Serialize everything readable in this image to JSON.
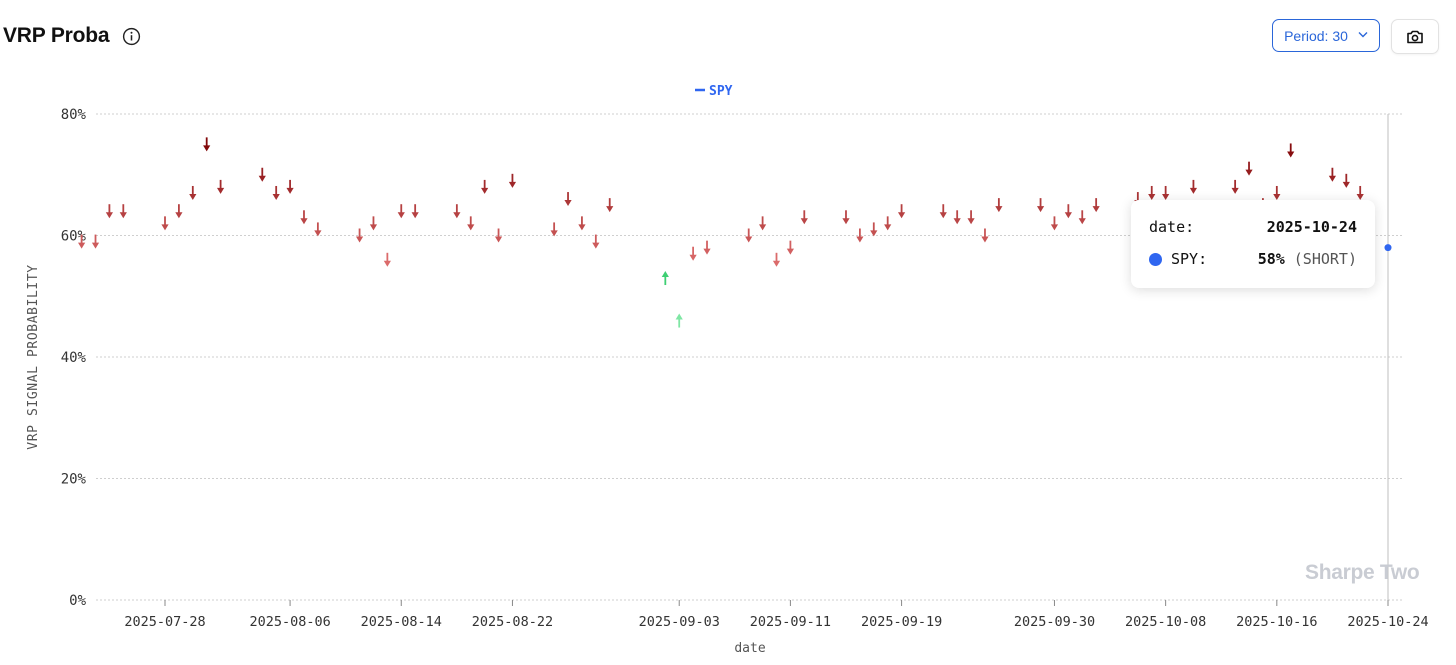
{
  "header": {
    "title": "VRP Proba",
    "info_icon": "info-circle-icon",
    "period_label": "Period: 30",
    "camera_icon": "camera-icon"
  },
  "tooltip": {
    "date_label": "date:",
    "date_value": "2025-10-24",
    "series_label": "SPY:",
    "value_text": "58%",
    "signal_text": "(SHORT)",
    "dot_color": "#2f66f0"
  },
  "watermark": "Sharpe Two",
  "chart_data": {
    "type": "scatter",
    "title": "",
    "xlabel": "date",
    "ylabel": "VRP SIGNAL PROBABILITY",
    "ylim": [
      0,
      80
    ],
    "y_ticks": [
      "0%",
      "20%",
      "40%",
      "60%",
      "80%"
    ],
    "x_ticks": [
      "2025-07-28",
      "2025-08-06",
      "2025-08-14",
      "2025-08-22",
      "2025-09-03",
      "2025-09-11",
      "2025-09-19",
      "2025-09-30",
      "2025-10-08",
      "2025-10-16",
      "2025-10-24"
    ],
    "grid": true,
    "legend": {
      "position": "top-center",
      "entries": [
        "SPY"
      ]
    },
    "series": [
      {
        "name": "SPY",
        "color": "#2f66f0",
        "short_color": "#b3202a",
        "long_color": "#3ecf73",
        "points": [
          {
            "x": "2025-07-22",
            "y": 59,
            "signal": "SHORT"
          },
          {
            "x": "2025-07-23",
            "y": 59,
            "signal": "SHORT"
          },
          {
            "x": "2025-07-24",
            "y": 64,
            "signal": "SHORT"
          },
          {
            "x": "2025-07-25",
            "y": 64,
            "signal": "SHORT"
          },
          {
            "x": "2025-07-28",
            "y": 62,
            "signal": "SHORT"
          },
          {
            "x": "2025-07-29",
            "y": 64,
            "signal": "SHORT"
          },
          {
            "x": "2025-07-30",
            "y": 67,
            "signal": "SHORT"
          },
          {
            "x": "2025-07-31",
            "y": 75,
            "signal": "SHORT"
          },
          {
            "x": "2025-08-01",
            "y": 68,
            "signal": "SHORT"
          },
          {
            "x": "2025-08-04",
            "y": 70,
            "signal": "SHORT"
          },
          {
            "x": "2025-08-05",
            "y": 67,
            "signal": "SHORT"
          },
          {
            "x": "2025-08-06",
            "y": 68,
            "signal": "SHORT"
          },
          {
            "x": "2025-08-07",
            "y": 63,
            "signal": "SHORT"
          },
          {
            "x": "2025-08-08",
            "y": 61,
            "signal": "SHORT"
          },
          {
            "x": "2025-08-11",
            "y": 60,
            "signal": "SHORT"
          },
          {
            "x": "2025-08-12",
            "y": 62,
            "signal": "SHORT"
          },
          {
            "x": "2025-08-13",
            "y": 56,
            "signal": "SHORT"
          },
          {
            "x": "2025-08-14",
            "y": 64,
            "signal": "SHORT"
          },
          {
            "x": "2025-08-15",
            "y": 64,
            "signal": "SHORT"
          },
          {
            "x": "2025-08-18",
            "y": 64,
            "signal": "SHORT"
          },
          {
            "x": "2025-08-19",
            "y": 62,
            "signal": "SHORT"
          },
          {
            "x": "2025-08-20",
            "y": 68,
            "signal": "SHORT"
          },
          {
            "x": "2025-08-21",
            "y": 60,
            "signal": "SHORT"
          },
          {
            "x": "2025-08-22",
            "y": 69,
            "signal": "SHORT"
          },
          {
            "x": "2025-08-25",
            "y": 61,
            "signal": "SHORT"
          },
          {
            "x": "2025-08-26",
            "y": 66,
            "signal": "SHORT"
          },
          {
            "x": "2025-08-27",
            "y": 62,
            "signal": "SHORT"
          },
          {
            "x": "2025-08-28",
            "y": 59,
            "signal": "SHORT"
          },
          {
            "x": "2025-08-29",
            "y": 65,
            "signal": "SHORT"
          },
          {
            "x": "2025-09-02",
            "y": 53,
            "signal": "LONG"
          },
          {
            "x": "2025-09-03",
            "y": 46,
            "signal": "LONG"
          },
          {
            "x": "2025-09-04",
            "y": 57,
            "signal": "SHORT"
          },
          {
            "x": "2025-09-05",
            "y": 58,
            "signal": "SHORT"
          },
          {
            "x": "2025-09-08",
            "y": 60,
            "signal": "SHORT"
          },
          {
            "x": "2025-09-09",
            "y": 62,
            "signal": "SHORT"
          },
          {
            "x": "2025-09-10",
            "y": 56,
            "signal": "SHORT"
          },
          {
            "x": "2025-09-11",
            "y": 58,
            "signal": "SHORT"
          },
          {
            "x": "2025-09-12",
            "y": 63,
            "signal": "SHORT"
          },
          {
            "x": "2025-09-15",
            "y": 63,
            "signal": "SHORT"
          },
          {
            "x": "2025-09-16",
            "y": 60,
            "signal": "SHORT"
          },
          {
            "x": "2025-09-17",
            "y": 61,
            "signal": "SHORT"
          },
          {
            "x": "2025-09-18",
            "y": 62,
            "signal": "SHORT"
          },
          {
            "x": "2025-09-19",
            "y": 64,
            "signal": "SHORT"
          },
          {
            "x": "2025-09-22",
            "y": 64,
            "signal": "SHORT"
          },
          {
            "x": "2025-09-23",
            "y": 63,
            "signal": "SHORT"
          },
          {
            "x": "2025-09-24",
            "y": 63,
            "signal": "SHORT"
          },
          {
            "x": "2025-09-25",
            "y": 60,
            "signal": "SHORT"
          },
          {
            "x": "2025-09-26",
            "y": 65,
            "signal": "SHORT"
          },
          {
            "x": "2025-09-29",
            "y": 65,
            "signal": "SHORT"
          },
          {
            "x": "2025-09-30",
            "y": 62,
            "signal": "SHORT"
          },
          {
            "x": "2025-10-01",
            "y": 64,
            "signal": "SHORT"
          },
          {
            "x": "2025-10-02",
            "y": 63,
            "signal": "SHORT"
          },
          {
            "x": "2025-10-03",
            "y": 65,
            "signal": "SHORT"
          },
          {
            "x": "2025-10-06",
            "y": 66,
            "signal": "SHORT"
          },
          {
            "x": "2025-10-07",
            "y": 67,
            "signal": "SHORT"
          },
          {
            "x": "2025-10-08",
            "y": 67,
            "signal": "SHORT"
          },
          {
            "x": "2025-10-10",
            "y": 68,
            "signal": "SHORT"
          },
          {
            "x": "2025-10-13",
            "y": 68,
            "signal": "SHORT"
          },
          {
            "x": "2025-10-14",
            "y": 71,
            "signal": "SHORT"
          },
          {
            "x": "2025-10-15",
            "y": 65,
            "signal": "SHORT"
          },
          {
            "x": "2025-10-16",
            "y": 67,
            "signal": "SHORT"
          },
          {
            "x": "2025-10-17",
            "y": 74,
            "signal": "SHORT"
          },
          {
            "x": "2025-10-20",
            "y": 70,
            "signal": "SHORT"
          },
          {
            "x": "2025-10-21",
            "y": 69,
            "signal": "SHORT"
          },
          {
            "x": "2025-10-22",
            "y": 67,
            "signal": "SHORT"
          },
          {
            "x": "2025-10-24",
            "y": 58,
            "signal": "SHORT"
          }
        ]
      }
    ]
  }
}
